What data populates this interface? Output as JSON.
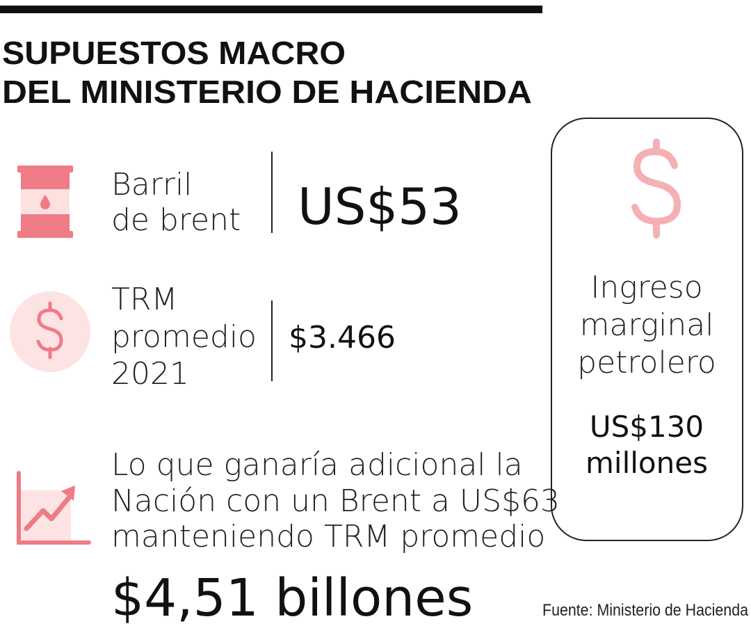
{
  "header": {
    "title_lines": [
      "SUPUESTOS MACRO",
      "DEL MINISTERIO DE HACIENDA"
    ]
  },
  "items": [
    {
      "label_lines": [
        "Barril",
        "de brent"
      ],
      "value": "US$53"
    },
    {
      "label_lines": [
        "TRM",
        "promedio",
        "2021"
      ],
      "value": "$3.466"
    },
    {
      "label_lines": [
        "Lo que ganaría adicional la",
        "Nación con un Brent a US$63",
        "manteniendo TRM promedio"
      ],
      "value": "$4,51 billones"
    }
  ],
  "box": {
    "label_lines": [
      "Ingreso",
      "marginal",
      "petrolero"
    ],
    "value_lines": [
      "US$130",
      "millones"
    ]
  },
  "source": "Fuente: Ministerio de Hacienda"
}
